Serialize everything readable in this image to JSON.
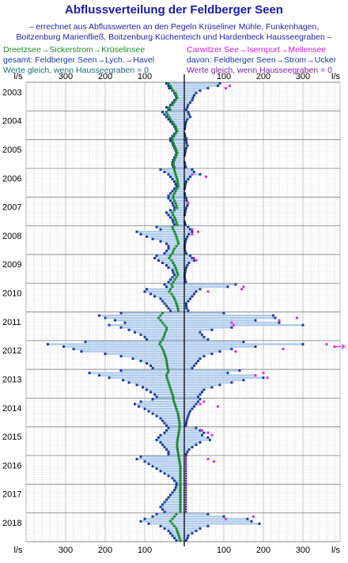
{
  "title": "Abflussverteilung der Feldberger Seen",
  "subtitle": [
    "– errechnet aus Abflusswerten an den Pegeln Krüseliner Mühle, Funkenhagen,",
    "Boitzenburg Marienfließ, Boitzenburg Küchenteich und Hardenbeck Hausseegraben –"
  ],
  "legend": {
    "left": [
      {
        "parts": [
          "Dreetzsee",
          "→",
          "Sickerstrom",
          "→",
          "Krüselinsee"
        ],
        "color": "#1d8a2a"
      },
      {
        "parts": [
          "gesamt: Feldberger Seen",
          "→",
          "Lych.",
          "→",
          "Havel"
        ],
        "color": "#1a3a9a"
      },
      {
        "parts": [
          "Werte gleich, wenn Hausseegraben = 0"
        ],
        "color": "#1a6a7a"
      }
    ],
    "right": [
      {
        "parts": [
          "Carwitzer See",
          "→",
          "Isernpurt",
          "→",
          "Mellensee"
        ],
        "color": "#cc22cc"
      },
      {
        "parts": [
          "davon: Feldberger Seen",
          "→",
          "Strom",
          "→",
          "Ucker"
        ],
        "color": "#1a3a9a"
      },
      {
        "parts": [
          "Werte gleich, wenn Hausseegraben = 0"
        ],
        "color": "#7a22aa"
      }
    ]
  },
  "colors": {
    "bar": "#a9c9ee",
    "green": "#1d8a2a",
    "blue": "#1a3a9a",
    "magenta": "#dd33dd",
    "purple": "#6622bb",
    "grid": "#cfcfcf",
    "axis": "#000000"
  },
  "chart_data": {
    "type": "bar",
    "orientation": "horizontal, diverging around 0",
    "unit": "l/s",
    "x_tick_labels_left": [
      "300",
      "200",
      "100"
    ],
    "x_tick_labels_right": [
      "100",
      "200",
      "300"
    ],
    "x_ticks_left_values": [
      300,
      200,
      100
    ],
    "x_ticks_right_values": [
      100,
      200,
      300
    ],
    "xlim_left": [
      -400,
      0
    ],
    "xlim_right": [
      0,
      400
    ],
    "grid": true,
    "years": [
      "2003",
      "2004",
      "2005",
      "2006",
      "2007",
      "2008",
      "2009",
      "2010",
      "2011",
      "2012",
      "2013",
      "2014",
      "2015",
      "2016",
      "2017",
      "2018"
    ],
    "months_per_year": 12,
    "left_totals": [
      45,
      40,
      38,
      30,
      25,
      22,
      20,
      25,
      30,
      35,
      45,
      40,
      55,
      50,
      45,
      40,
      35,
      30,
      25,
      22,
      20,
      25,
      30,
      35,
      35,
      30,
      28,
      25,
      22,
      20,
      22,
      25,
      28,
      30,
      30,
      28,
      60,
      50,
      40,
      35,
      30,
      25,
      22,
      20,
      25,
      30,
      35,
      40,
      40,
      35,
      30,
      28,
      25,
      35,
      45,
      40,
      35,
      30,
      28,
      25,
      70,
      60,
      120,
      110,
      95,
      80,
      60,
      45,
      40,
      40,
      45,
      50,
      70,
      75,
      65,
      55,
      45,
      40,
      30,
      28,
      25,
      30,
      35,
      40,
      50,
      45,
      95,
      100,
      85,
      75,
      60,
      55,
      50,
      45,
      40,
      35,
      160,
      215,
      200,
      175,
      150,
      190,
      160,
      140,
      125,
      110,
      100,
      95,
      250,
      345,
      305,
      280,
      260,
      200,
      160,
      130,
      110,
      95,
      85,
      80,
      160,
      240,
      215,
      190,
      155,
      140,
      120,
      105,
      95,
      85,
      75,
      70,
      80,
      110,
      125,
      115,
      100,
      90,
      80,
      70,
      60,
      55,
      50,
      45,
      40,
      45,
      50,
      60,
      65,
      70,
      60,
      55,
      50,
      45,
      40,
      40,
      110,
      120,
      100,
      90,
      80,
      70,
      60,
      50,
      40,
      30,
      25,
      20,
      20,
      22,
      25,
      30,
      35,
      40,
      45,
      50,
      55,
      60,
      55,
      50,
      70,
      80,
      100,
      110,
      90,
      60,
      50,
      40,
      35,
      30,
      25,
      20
    ],
    "right_totals": [
      90,
      85,
      60,
      40,
      30,
      25,
      22,
      20,
      15,
      10,
      8,
      5,
      10,
      12,
      15,
      8,
      5,
      3,
      2,
      1,
      0,
      1,
      2,
      5,
      5,
      6,
      8,
      5,
      3,
      2,
      1,
      0,
      0,
      1,
      2,
      4,
      20,
      25,
      40,
      15,
      10,
      5,
      3,
      2,
      1,
      0,
      1,
      2,
      5,
      6,
      10,
      8,
      5,
      3,
      2,
      1,
      0,
      0,
      1,
      3,
      10,
      15,
      20,
      12,
      8,
      5,
      3,
      2,
      1,
      1,
      2,
      5,
      15,
      20,
      25,
      12,
      8,
      5,
      3,
      2,
      1,
      1,
      2,
      4,
      130,
      110,
      40,
      30,
      25,
      20,
      15,
      10,
      5,
      5,
      6,
      10,
      100,
      225,
      230,
      180,
      240,
      300,
      120,
      70,
      40,
      45,
      50,
      60,
      150,
      300,
      180,
      120,
      90,
      70,
      50,
      40,
      35,
      30,
      25,
      20,
      140,
      110,
      180,
      200,
      150,
      120,
      90,
      70,
      50,
      45,
      40,
      35,
      40,
      35,
      30,
      25,
      20,
      15,
      12,
      10,
      8,
      6,
      5,
      4,
      30,
      40,
      50,
      45,
      60,
      65,
      40,
      30,
      20,
      12,
      8,
      5,
      0,
      0,
      0,
      0,
      0,
      0,
      0,
      0,
      0,
      0,
      0,
      0,
      0,
      0,
      0,
      0,
      0,
      0,
      0,
      0,
      0,
      0,
      0,
      0,
      60,
      100,
      160,
      170,
      190,
      60,
      40,
      30,
      20,
      10,
      8,
      5
    ],
    "green_markers": [
      40,
      35,
      32,
      28,
      22,
      20,
      18,
      22,
      26,
      30,
      38,
      35,
      45,
      42,
      38,
      35,
      30,
      26,
      22,
      20,
      18,
      22,
      26,
      30,
      30,
      27,
      25,
      22,
      20,
      18,
      20,
      22,
      25,
      27,
      27,
      25,
      25,
      24,
      22,
      20,
      18,
      17,
      16,
      15,
      18,
      22,
      25,
      28,
      28,
      25,
      22,
      20,
      18,
      25,
      30,
      28,
      25,
      22,
      20,
      18,
      30,
      28,
      25,
      22,
      20,
      18,
      16,
      15,
      20,
      25,
      28,
      30,
      35,
      38,
      32,
      28,
      25,
      22,
      20,
      18,
      16,
      20,
      24,
      28,
      32,
      30,
      35,
      38,
      32,
      28,
      25,
      22,
      20,
      18,
      16,
      15,
      55,
      60,
      65,
      60,
      55,
      50,
      45,
      45,
      48,
      50,
      52,
      55,
      60,
      62,
      58,
      55,
      52,
      50,
      48,
      46,
      45,
      44,
      43,
      42,
      40,
      42,
      45,
      44,
      42,
      40,
      38,
      36,
      34,
      32,
      30,
      28,
      28,
      26,
      24,
      22,
      20,
      18,
      16,
      15,
      14,
      13,
      12,
      12,
      12,
      13,
      14,
      15,
      16,
      17,
      18,
      18,
      18,
      17,
      16,
      15,
      14,
      13,
      12,
      11,
      10,
      10,
      10,
      10,
      10,
      10,
      10,
      10,
      10,
      10,
      10,
      10,
      10,
      10,
      10,
      10,
      10,
      10,
      10,
      10,
      20,
      25,
      30,
      35,
      30,
      25,
      20,
      18,
      16,
      14,
      12,
      10
    ],
    "magenta_markers_note": "Carwitzer See → Isernpurt → Mellensee, shown right of zero",
    "magenta_markers": [
      {
        "year": "2003",
        "month": 1,
        "value": 115
      },
      {
        "year": "2003",
        "month": 2,
        "value": 105
      },
      {
        "year": "2006",
        "month": 2,
        "value": 20
      },
      {
        "year": "2006",
        "month": 3,
        "value": 55
      },
      {
        "year": "2007",
        "month": 2,
        "value": 10
      },
      {
        "year": "2008",
        "month": 1,
        "value": 20
      },
      {
        "year": "2008",
        "month": 2,
        "value": 35
      },
      {
        "year": "2008",
        "month": 3,
        "value": 20
      },
      {
        "year": "2009",
        "month": 1,
        "value": 25
      },
      {
        "year": "2009",
        "month": 2,
        "value": 30
      },
      {
        "year": "2010",
        "month": 1,
        "value": 150
      },
      {
        "year": "2010",
        "month": 2,
        "value": 145
      },
      {
        "year": "2010",
        "month": 3,
        "value": 60
      },
      {
        "year": "2011",
        "month": 2,
        "value": 285
      },
      {
        "year": "2011",
        "month": 3,
        "value": 240
      },
      {
        "year": "2011",
        "month": 4,
        "value": 120
      },
      {
        "year": "2011",
        "month": 5,
        "value": 125
      },
      {
        "year": "2012",
        "month": 1,
        "value": 360
      },
      {
        "year": "2012",
        "month": 2,
        "value": 380
      },
      {
        "year": "2012",
        "month": 3,
        "value": 250
      },
      {
        "year": "2012",
        "month": 4,
        "value": 130
      },
      {
        "year": "2013",
        "month": 1,
        "value": 200
      },
      {
        "year": "2013",
        "month": 2,
        "value": 180
      },
      {
        "year": "2013",
        "month": 3,
        "value": 210
      },
      {
        "year": "2014",
        "month": 1,
        "value": 50
      },
      {
        "year": "2014",
        "month": 2,
        "value": 40
      },
      {
        "year": "2014",
        "month": 3,
        "value": 85
      },
      {
        "year": "2015",
        "month": 1,
        "value": 45
      },
      {
        "year": "2015",
        "month": 2,
        "value": 60
      },
      {
        "year": "2015",
        "month": 3,
        "value": 70
      },
      {
        "year": "2016",
        "month": 1,
        "value": 60
      },
      {
        "year": "2016",
        "month": 2,
        "value": 75
      },
      {
        "year": "2018",
        "month": 1,
        "value": 175
      },
      {
        "year": "2018",
        "month": 2,
        "value": 105
      }
    ],
    "purple_marker_years_note": "purple markers at zero line in years where Hausseegraben = 0",
    "purple_marker_years": [
      "2016",
      "2017"
    ],
    "arrow_offscale": {
      "year": "2012",
      "month": 2,
      "direction": "right"
    }
  }
}
